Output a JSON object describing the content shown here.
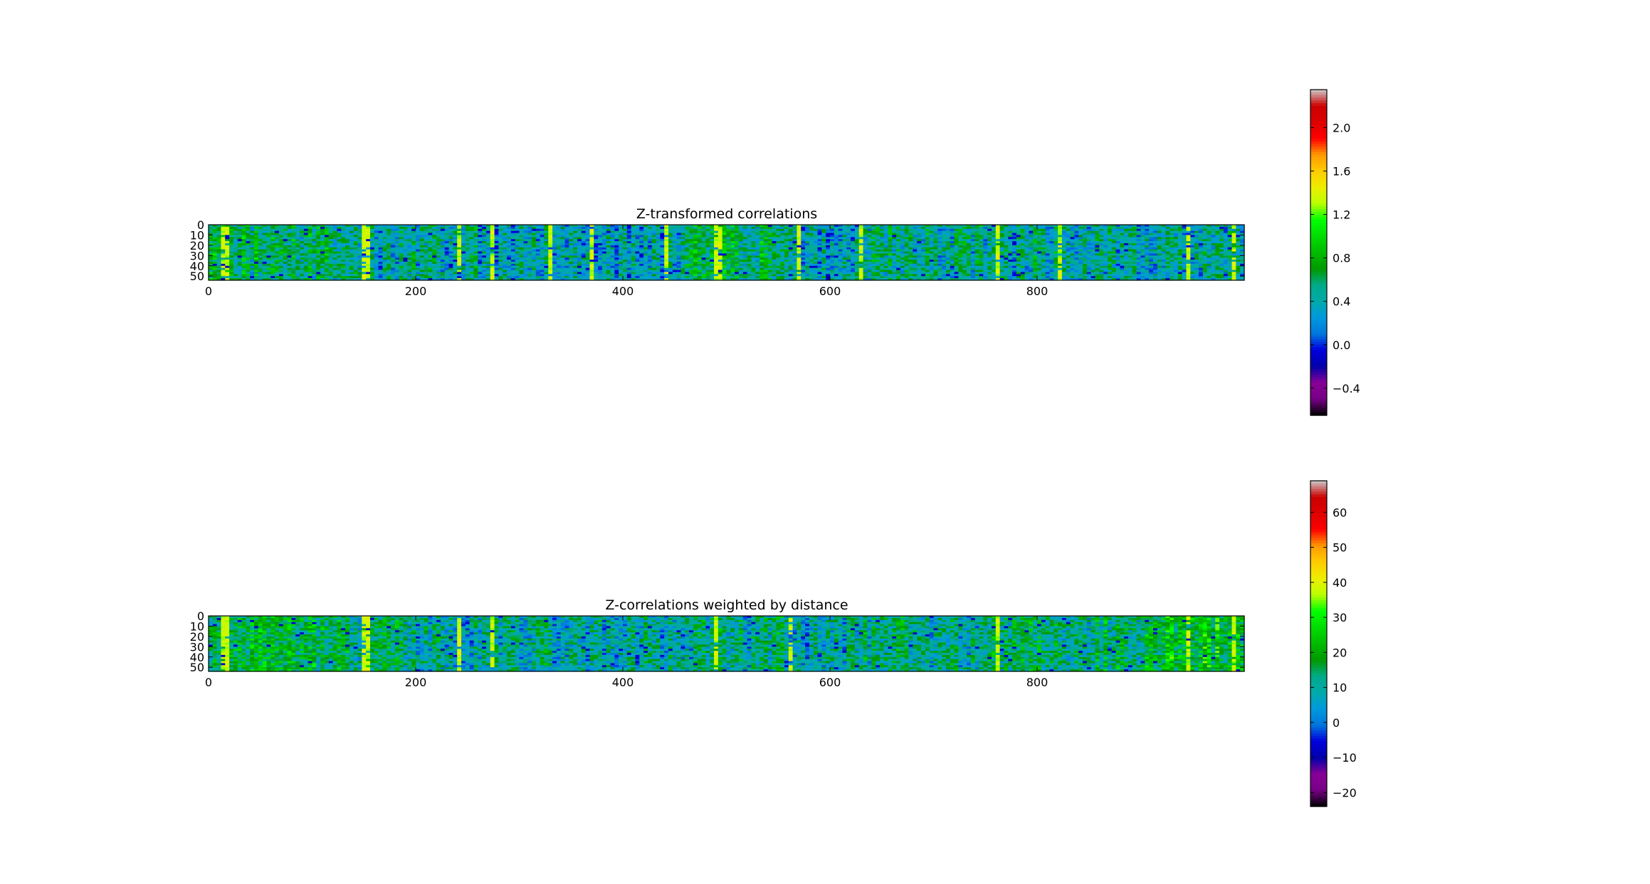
{
  "chart_data": [
    {
      "type": "heatmap",
      "title": "Z-transformed correlations",
      "colormap": "nipy_spectral",
      "x_ticks": [
        "0",
        "200",
        "400",
        "600",
        "800"
      ],
      "x_tick_values": [
        0,
        200,
        400,
        600,
        800
      ],
      "y_ticks": [
        "0",
        "10",
        "20",
        "30",
        "40",
        "50"
      ],
      "y_tick_values": [
        0,
        10,
        20,
        30,
        40,
        50
      ],
      "xlim": [
        0,
        1000
      ],
      "ylim": [
        54,
        0
      ],
      "color_range": [
        -0.65,
        2.35
      ],
      "colorbar_ticks": [
        "2.0",
        "1.6",
        "1.2",
        "0.8",
        "0.4",
        "0.0",
        "−0.4"
      ],
      "colorbar_tick_values": [
        2.0,
        1.6,
        1.2,
        0.8,
        0.4,
        0.0,
        -0.4
      ],
      "column_profile": [
        {
          "x": [
            0,
            120
          ],
          "level": 0.62
        },
        {
          "x": [
            120,
            190
          ],
          "level": 0.4
        },
        {
          "x": [
            190,
            260
          ],
          "level": 0.45
        },
        {
          "x": [
            260,
            330
          ],
          "level": 0.35
        },
        {
          "x": [
            330,
            460
          ],
          "level": 0.35
        },
        {
          "x": [
            460,
            560
          ],
          "level": 0.6
        },
        {
          "x": [
            560,
            630
          ],
          "level": 0.3
        },
        {
          "x": [
            630,
            760
          ],
          "level": 0.48
        },
        {
          "x": [
            760,
            900
          ],
          "level": 0.45
        },
        {
          "x": [
            900,
            1000
          ],
          "level": 0.42
        }
      ],
      "bright_columns": [
        15,
        18,
        150,
        155,
        240,
        275,
        330,
        370,
        440,
        490,
        495,
        570,
        630,
        760,
        820,
        945,
        990
      ]
    },
    {
      "type": "heatmap",
      "title": "Z-correlations weighted by distance",
      "colormap": "nipy_spectral",
      "x_ticks": [
        "0",
        "200",
        "400",
        "600",
        "800"
      ],
      "x_tick_values": [
        0,
        200,
        400,
        600,
        800
      ],
      "y_ticks": [
        "0",
        "10",
        "20",
        "30",
        "40",
        "50"
      ],
      "y_tick_values": [
        0,
        10,
        20,
        30,
        40,
        50
      ],
      "xlim": [
        0,
        1000
      ],
      "ylim": [
        54,
        0
      ],
      "color_range": [
        -24,
        69
      ],
      "colorbar_ticks": [
        "60",
        "50",
        "40",
        "30",
        "20",
        "10",
        "0",
        "−10",
        "−20"
      ],
      "colorbar_tick_values": [
        60,
        50,
        40,
        30,
        20,
        10,
        0,
        -10,
        -20
      ],
      "column_profile": [
        {
          "x": [
            0,
            120
          ],
          "level": 18
        },
        {
          "x": [
            120,
            190
          ],
          "level": 14
        },
        {
          "x": [
            190,
            230
          ],
          "level": 10
        },
        {
          "x": [
            230,
            460
          ],
          "level": 9
        },
        {
          "x": [
            460,
            560
          ],
          "level": 11
        },
        {
          "x": [
            560,
            620
          ],
          "level": 9
        },
        {
          "x": [
            620,
            760
          ],
          "level": 12
        },
        {
          "x": [
            760,
            900
          ],
          "level": 14
        },
        {
          "x": [
            900,
            1000
          ],
          "level": 20
        }
      ],
      "bright_columns": [
        15,
        18,
        150,
        155,
        240,
        275,
        490,
        560,
        760,
        945,
        990
      ]
    }
  ]
}
